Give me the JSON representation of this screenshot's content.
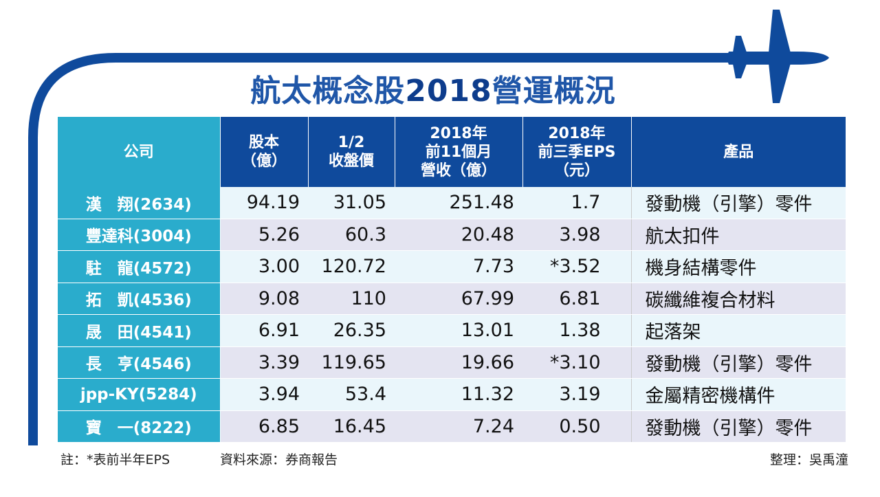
{
  "title": {
    "main": "航太概念股",
    "year": "2018",
    "tail": "營運概況"
  },
  "colors": {
    "frame": "#0f4a9c",
    "title": "#1f56a8",
    "header": "#0f4a9c",
    "company_col": "#2aaccc",
    "row_light": "#eaf6fb",
    "row_dark": "#e4e4f1"
  },
  "headers": [
    {
      "lines": [
        "公司"
      ]
    },
    {
      "lines": [
        "股本",
        "（億）"
      ]
    },
    {
      "lines": [
        "1/2",
        "收盤價"
      ]
    },
    {
      "lines": [
        "2018年",
        "前11個月",
        "營收（億）"
      ]
    },
    {
      "lines": [
        "2018年",
        "前三季EPS",
        "（元）"
      ]
    },
    {
      "lines": [
        "產品"
      ]
    }
  ],
  "rows": [
    {
      "company": "漢　翔(2634)",
      "capital": "94.19",
      "close": "31.05",
      "revenue": "251.48",
      "eps": "1.7",
      "product": "發動機（引擎）零件"
    },
    {
      "company": "豐達科(3004)",
      "capital": "5.26",
      "close": "60.3",
      "revenue": "20.48",
      "eps": "3.98",
      "product": "航太扣件"
    },
    {
      "company": "駐　龍(4572)",
      "capital": "3.00",
      "close": "120.72",
      "revenue": "7.73",
      "eps": "*3.52",
      "product": "機身結構零件"
    },
    {
      "company": "拓　凱(4536)",
      "capital": "9.08",
      "close": "110",
      "revenue": "67.99",
      "eps": "6.81",
      "product": "碳纖維複合材料"
    },
    {
      "company": "晟　田(4541)",
      "capital": "6.91",
      "close": "26.35",
      "revenue": "13.01",
      "eps": "1.38",
      "product": "起落架"
    },
    {
      "company": "長　亨(4546)",
      "capital": "3.39",
      "close": "119.65",
      "revenue": "19.66",
      "eps": "*3.10",
      "product": "發動機（引擎）零件"
    },
    {
      "company": "jpp-KY(5284)",
      "capital": "3.94",
      "close": "53.4",
      "revenue": "11.32",
      "eps": "3.19",
      "product": "金屬精密機構件"
    },
    {
      "company": "寶　一(8222)",
      "capital": "6.85",
      "close": "16.45",
      "revenue": "7.24",
      "eps": "0.50",
      "product": "發動機（引擎）零件"
    }
  ],
  "footer": {
    "note": "註：*表前半年EPS",
    "source": "資料來源：券商報告",
    "compiler": "整理：吳禹潼"
  }
}
